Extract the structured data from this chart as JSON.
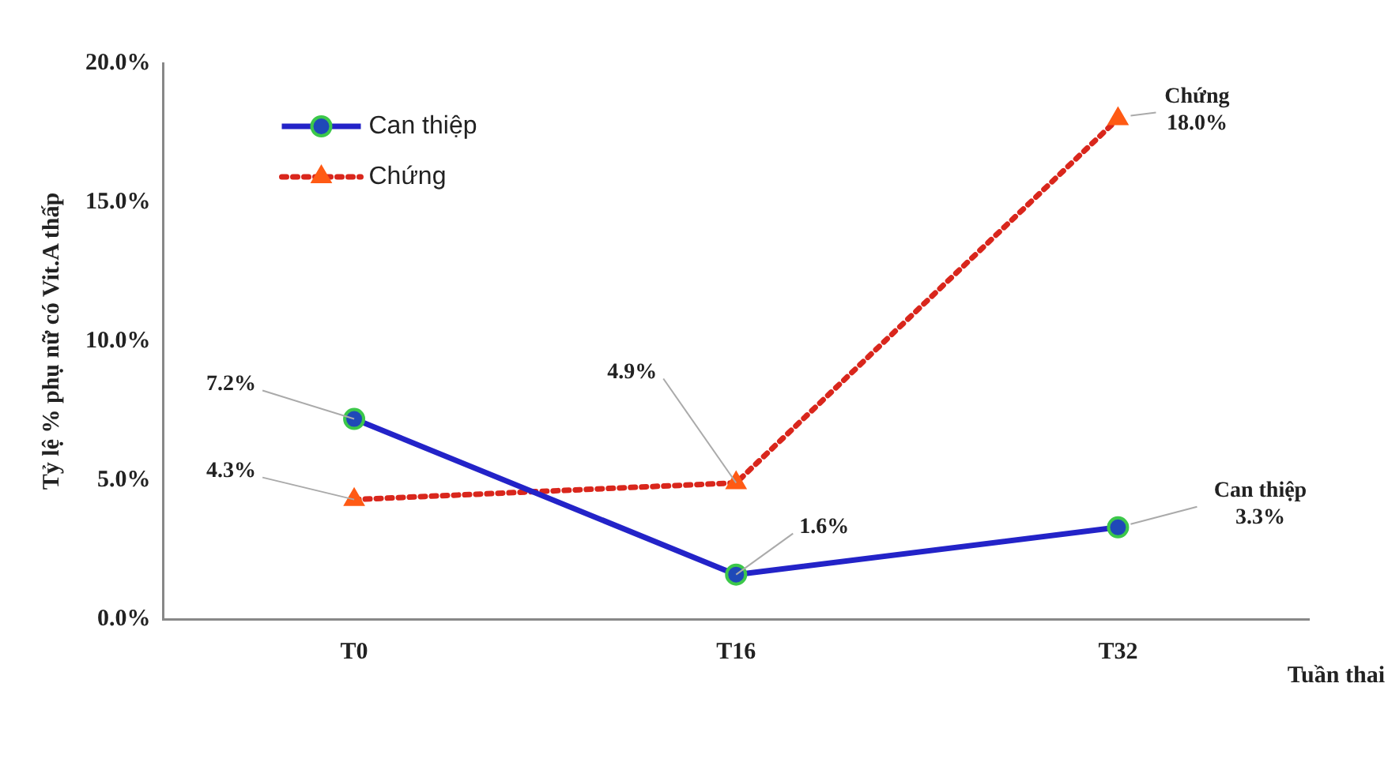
{
  "chart_data": {
    "type": "line",
    "ylabel": "Tỷ lệ % phụ nữ có Vit.A thấp",
    "xlabel": "Tuần thai",
    "categories": [
      "T0",
      "T16",
      "T32"
    ],
    "ylim": [
      0,
      20
    ],
    "yticks": [
      {
        "value": 0,
        "label": "0.0%"
      },
      {
        "value": 5,
        "label": "5.0%"
      },
      {
        "value": 10,
        "label": "10.0%"
      },
      {
        "value": 15,
        "label": "15.0%"
      },
      {
        "value": 20,
        "label": "20.0%"
      }
    ],
    "grid": false,
    "legend": "top left",
    "series": [
      {
        "name": "Can thiệp",
        "color": "#2323c8",
        "values": [
          7.2,
          1.6,
          3.3
        ],
        "marker": "circle",
        "line_style": "solid",
        "value_labels": [
          "7.2%",
          "1.6%",
          null
        ]
      },
      {
        "name": "Chứng",
        "color": "#d9261c",
        "values": [
          4.3,
          4.9,
          18.0
        ],
        "marker": "triangle",
        "line_style": "dotted",
        "value_labels": [
          "4.3%",
          "4.9%",
          null
        ]
      }
    ],
    "annotations": [
      {
        "text": "Chứng\n18.0%",
        "x": "T32",
        "y": 18.0
      },
      {
        "text": "Can thiệp\n3.3%",
        "x": "T32",
        "y": 3.3
      }
    ]
  }
}
